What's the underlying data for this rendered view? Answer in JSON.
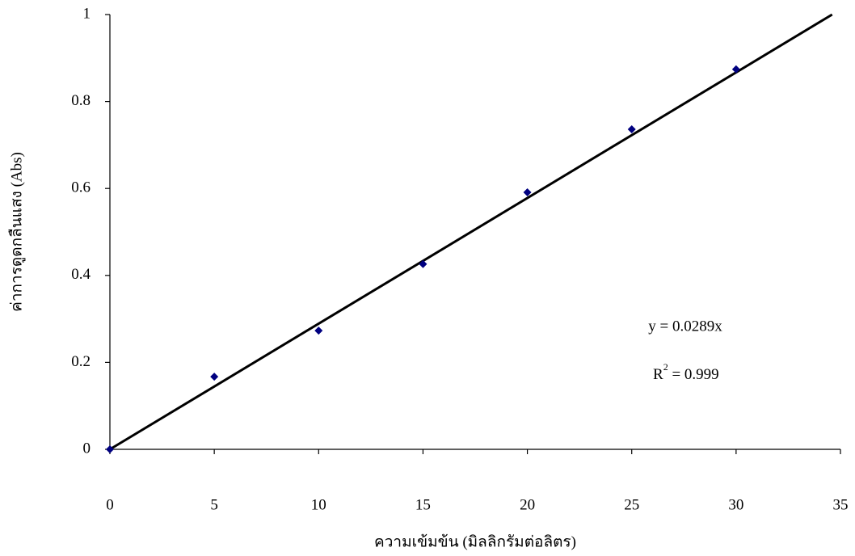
{
  "chart_data": {
    "type": "scatter",
    "x_label": "ความเข้มข้น (มิลลิกรัมต่อลิตร)",
    "y_label": "ค่าการดูดกลืนแสง (Abs)",
    "x": [
      0,
      5,
      10,
      15,
      20,
      25,
      30
    ],
    "series": [
      {
        "name": null,
        "color": "#000080",
        "values": [
          0,
          0.167,
          0.273,
          0.426,
          0.591,
          0.736,
          0.874
        ]
      }
    ],
    "xlim": [
      0,
      35
    ],
    "ylim": [
      0,
      1
    ],
    "xticks": [
      0,
      5,
      10,
      15,
      20,
      25,
      30,
      35
    ],
    "yticks": [
      0,
      0.2,
      0.4,
      0.6,
      0.8,
      1
    ],
    "grid": false,
    "trendline": {
      "slope": 0.0289,
      "color": "#000000",
      "equation": "y = 0.0289x",
      "r2": {
        "base": "R",
        "sup": "2",
        "rest": " = 0.999"
      }
    }
  }
}
